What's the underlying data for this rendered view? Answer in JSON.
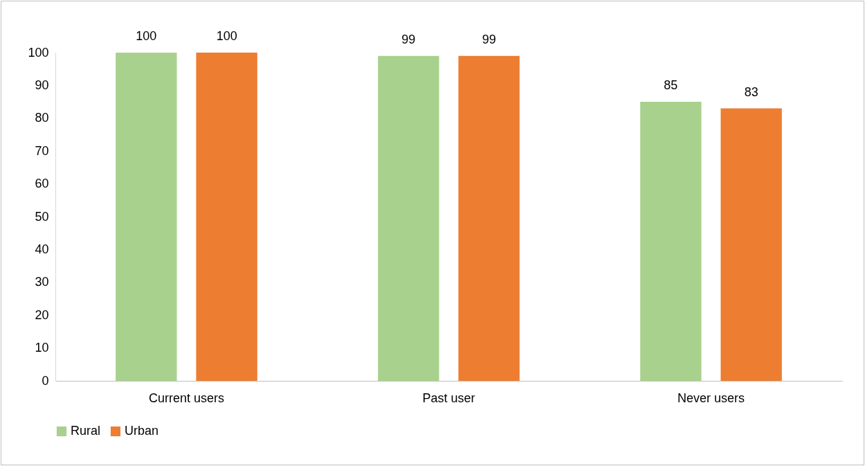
{
  "chart_data": {
    "type": "bar",
    "categories": [
      "Current users",
      "Past user",
      "Never users"
    ],
    "series": [
      {
        "name": "Rural",
        "color": "#a9d18e",
        "values": [
          100,
          99,
          85
        ]
      },
      {
        "name": "Urban",
        "color": "#ed7d31",
        "values": [
          100,
          99,
          83
        ]
      }
    ],
    "ylim": [
      0,
      100
    ],
    "yticks": [
      0,
      10,
      20,
      30,
      40,
      50,
      60,
      70,
      80,
      90,
      100
    ],
    "data_labels": true,
    "legend": "bottom",
    "grid": false
  }
}
